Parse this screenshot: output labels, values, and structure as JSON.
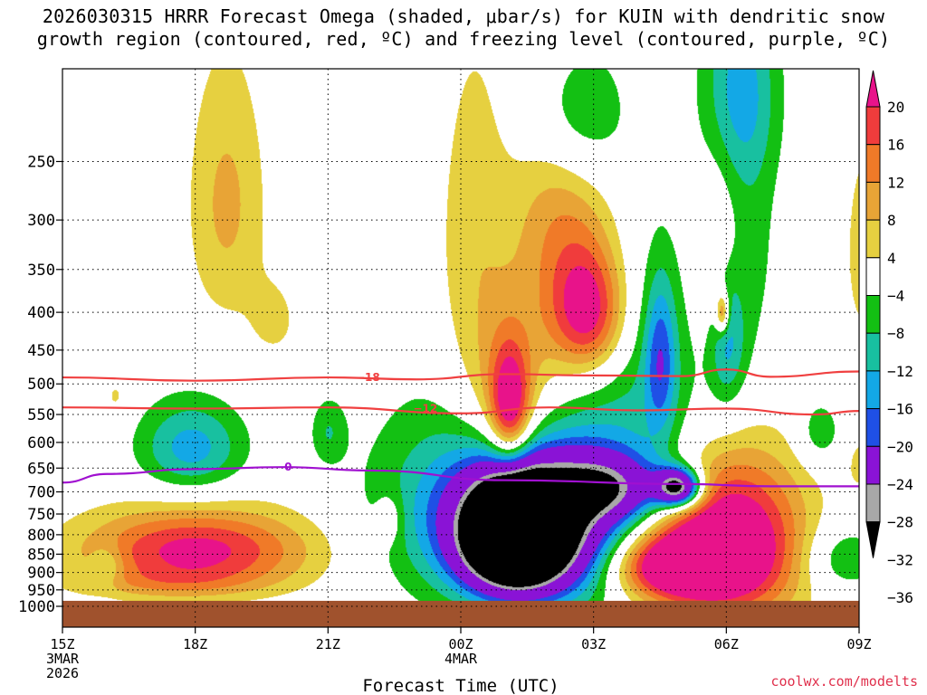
{
  "title_line1": "2026030315 HRRR Forecast Omega (shaded, μbar/s) for KUIN with dendritic snow",
  "title_line2": "growth region (contoured, red, ºC) and freezing level (contoured, purple, ºC)",
  "credit": "coolwx.com/modelts",
  "chart_data": {
    "type": "heatmap",
    "title": "2026030315 HRRR Forecast Omega (shaded, μbar/s) for KUIN with dendritic snow growth region (contoured, red, ºC) and freezing level (contoured, purple, ºC)",
    "xlabel": "Forecast Time (UTC)",
    "ylabel": "",
    "x_unit": "hours since 2026-03-03 15Z",
    "xlim": [
      0,
      18
    ],
    "x_ticks": [
      {
        "x": 0,
        "lines": [
          "15Z",
          "3MAR",
          "2026"
        ]
      },
      {
        "x": 3,
        "lines": [
          "18Z"
        ]
      },
      {
        "x": 6,
        "lines": [
          "21Z"
        ]
      },
      {
        "x": 9,
        "lines": [
          "00Z",
          "4MAR"
        ]
      },
      {
        "x": 12,
        "lines": [
          "03Z"
        ]
      },
      {
        "x": 15,
        "lines": [
          "06Z"
        ]
      },
      {
        "x": 18,
        "lines": [
          "09Z"
        ]
      }
    ],
    "ylim": [
      1000,
      200
    ],
    "y_ticks": [
      250,
      300,
      350,
      400,
      450,
      500,
      550,
      600,
      650,
      700,
      750,
      800,
      850,
      900,
      950,
      1000
    ],
    "grid": true,
    "colorbar": {
      "unit": "μbar/s",
      "labels": [
        "20",
        "16",
        "12",
        "8",
        "4",
        "−4",
        "−8",
        "−12",
        "−16",
        "−20",
        "−24",
        "−28",
        "−32",
        "−36"
      ],
      "colors": [
        "#e8138a",
        "#f03c3c",
        "#f07a28",
        "#e8a436",
        "#e6d040",
        "#ffffff",
        "#13c013",
        "#18c0a0",
        "#13a8e6",
        "#1f50e6",
        "#8a13d6",
        "#a8a8a8",
        "#000000"
      ]
    },
    "omega_features": [
      {
        "x": 3.7,
        "p": 285,
        "rx": 0.9,
        "ry": 120,
        "peak": 9
      },
      {
        "x": 4.8,
        "p": 410,
        "rx": 0.6,
        "ry": 55,
        "peak": 5
      },
      {
        "x": 1.2,
        "p": 520,
        "rx": 0.3,
        "ry": 35,
        "peak": 5
      },
      {
        "x": 3.0,
        "p": 840,
        "rx": 2.6,
        "ry": 110,
        "peak": 22
      },
      {
        "x": 2.2,
        "p": 930,
        "rx": 2.2,
        "ry": 45,
        "peak": 5
      },
      {
        "x": 1.0,
        "p": 880,
        "rx": 0.35,
        "ry": 55,
        "peak": -7
      },
      {
        "x": 2.9,
        "p": 610,
        "rx": 1.2,
        "ry": 90,
        "peak": -14
      },
      {
        "x": 6.0,
        "p": 580,
        "rx": 0.4,
        "ry": 60,
        "peak": -7
      },
      {
        "x": 7.4,
        "p": 760,
        "rx": 0.3,
        "ry": 60,
        "peak": 6
      },
      {
        "x": 8.8,
        "p": 720,
        "rx": 2.2,
        "ry": 230,
        "peak": -9
      },
      {
        "x": 9.3,
        "p": 330,
        "rx": 0.9,
        "ry": 190,
        "peak": 7
      },
      {
        "x": 11.0,
        "p": 330,
        "rx": 0.9,
        "ry": 150,
        "peak": 6
      },
      {
        "x": 10.1,
        "p": 540,
        "rx": 1.1,
        "ry": 140,
        "peak": 13
      },
      {
        "x": 10.1,
        "p": 540,
        "rx": 0.45,
        "ry": 100,
        "peak": 22
      },
      {
        "x": 11.9,
        "p": 400,
        "rx": 0.8,
        "ry": 80,
        "peak": 22
      },
      {
        "x": 11.5,
        "p": 300,
        "rx": 1.1,
        "ry": 120,
        "peak": 6
      },
      {
        "x": 10.7,
        "p": 780,
        "rx": 1.9,
        "ry": 190,
        "peak": -40
      },
      {
        "x": 10.2,
        "p": 800,
        "rx": 1.0,
        "ry": 120,
        "peak": -60
      },
      {
        "x": 12.3,
        "p": 690,
        "rx": 1.3,
        "ry": 70,
        "peak": -22
      },
      {
        "x": 13.9,
        "p": 690,
        "rx": 0.5,
        "ry": 40,
        "peak": -40
      },
      {
        "x": 13.3,
        "p": 560,
        "rx": 1.6,
        "ry": 220,
        "peak": -9
      },
      {
        "x": 13.5,
        "p": 460,
        "rx": 0.35,
        "ry": 110,
        "peak": -14
      },
      {
        "x": 11.6,
        "p": 215,
        "rx": 1.1,
        "ry": 50,
        "peak": -11
      },
      {
        "x": 15.3,
        "p": 300,
        "rx": 0.8,
        "ry": 200,
        "peak": -8
      },
      {
        "x": 15.0,
        "p": 420,
        "rx": 0.4,
        "ry": 100,
        "peak": -14
      },
      {
        "x": 15.3,
        "p": 200,
        "rx": 0.9,
        "ry": 60,
        "peak": -9
      },
      {
        "x": 14.9,
        "p": 350,
        "rx": 0.55,
        "ry": 110,
        "peak": 12
      },
      {
        "x": 14.9,
        "p": 400,
        "rx": 0.15,
        "ry": 25,
        "peak": 18
      },
      {
        "x": 15.0,
        "p": 820,
        "rx": 1.7,
        "ry": 210,
        "peak": 30
      },
      {
        "x": 13.7,
        "p": 880,
        "rx": 1.4,
        "ry": 90,
        "peak": 24
      },
      {
        "x": 17.1,
        "p": 580,
        "rx": 0.5,
        "ry": 60,
        "peak": -8
      },
      {
        "x": 17.6,
        "p": 860,
        "rx": 0.9,
        "ry": 90,
        "peak": -9
      },
      {
        "x": 18.1,
        "p": 330,
        "rx": 0.5,
        "ry": 120,
        "peak": 6
      },
      {
        "x": 18.0,
        "p": 640,
        "rx": 0.3,
        "ry": 60,
        "peak": 5
      }
    ],
    "contours": [
      {
        "name": "dendritic top",
        "label": "−18",
        "color": "#f04040",
        "points": [
          [
            0,
            490
          ],
          [
            3,
            495
          ],
          [
            6,
            490
          ],
          [
            8,
            493
          ],
          [
            10,
            485
          ],
          [
            12,
            487
          ],
          [
            14,
            488
          ],
          [
            15,
            478
          ],
          [
            16,
            489
          ],
          [
            18,
            481
          ]
        ]
      },
      {
        "name": "dendritic base",
        "label": "−12",
        "color": "#f04040",
        "points": [
          [
            0,
            538
          ],
          [
            3,
            540
          ],
          [
            6,
            538
          ],
          [
            9,
            548
          ],
          [
            11,
            538
          ],
          [
            13,
            543
          ],
          [
            15,
            540
          ],
          [
            17,
            550
          ],
          [
            18,
            544
          ]
        ]
      },
      {
        "name": "freezing level",
        "label": "0",
        "color": "#a010d0",
        "points": [
          [
            0,
            680
          ],
          [
            1,
            662
          ],
          [
            3,
            652
          ],
          [
            5,
            648
          ],
          [
            7,
            655
          ],
          [
            10,
            675
          ],
          [
            14,
            683
          ],
          [
            16,
            688
          ],
          [
            18,
            688
          ]
        ]
      }
    ],
    "ground_pressure": 983
  }
}
